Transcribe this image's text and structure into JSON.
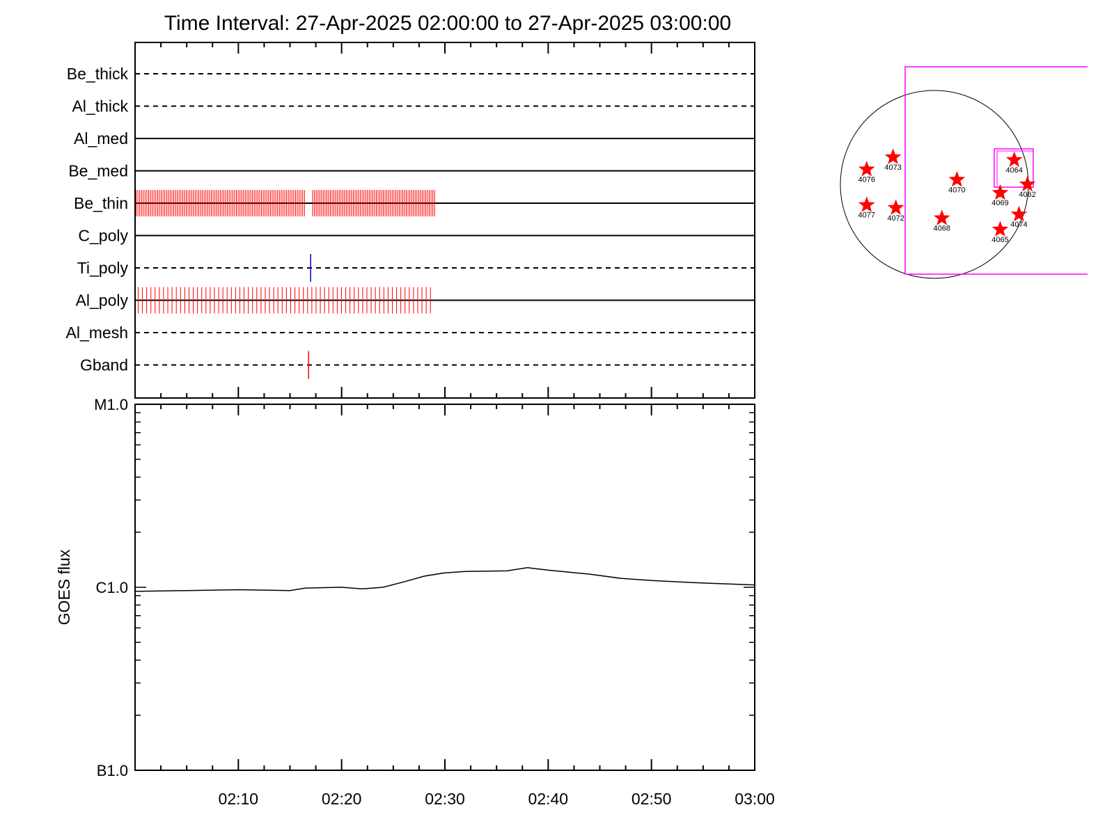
{
  "title": "Time Interval: 27-Apr-2025 02:00:00 to 27-Apr-2025 03:00:00",
  "colors": {
    "axes": "#000000",
    "frame_marks": "#ff0000",
    "ti_poly_mark": "#0000cc",
    "fov_box": "#ff00ff",
    "active_region_star": "#ff0000"
  },
  "chart_data": [
    {
      "type": "timeline",
      "name": "filter_timeline",
      "x_range": [
        "02:00",
        "03:00"
      ],
      "rows": [
        {
          "label": "Be_thick",
          "style": "dashed",
          "marks": []
        },
        {
          "label": "Al_thick",
          "style": "dashed",
          "marks": []
        },
        {
          "label": "Al_med",
          "style": "solid",
          "marks": []
        },
        {
          "label": "Be_med",
          "style": "solid",
          "marks": []
        },
        {
          "label": "Be_thin",
          "style": "solid",
          "mark_color": "red",
          "mark_ranges": [
            {
              "start_min": 0.1,
              "end_min": 16.4,
              "count": 95
            },
            {
              "start_min": 17.2,
              "end_min": 29.0,
              "count": 70
            }
          ]
        },
        {
          "label": "C_poly",
          "style": "solid",
          "marks": []
        },
        {
          "label": "Ti_poly",
          "style": "dashed",
          "mark_color": "blue",
          "marks_min": [
            17.0
          ]
        },
        {
          "label": "Al_poly",
          "style": "solid",
          "mark_color": "red",
          "mark_ranges": [
            {
              "start_min": 0.3,
              "end_min": 28.6,
              "count": 70
            }
          ]
        },
        {
          "label": "Al_mesh",
          "style": "dashed",
          "marks": []
        },
        {
          "label": "Gband",
          "style": "dashed",
          "mark_color": "red",
          "marks_min": [
            16.8
          ]
        }
      ]
    },
    {
      "type": "line",
      "name": "goes_flux",
      "ylabel": "GOES flux",
      "yscale": "log",
      "ylim": [
        1e-07,
        1e-05
      ],
      "ytick_labels": [
        {
          "value": 1e-05,
          "label": "M1.0"
        },
        {
          "value": 1e-06,
          "label": "C1.0"
        },
        {
          "value": 1e-07,
          "label": "B1.0"
        }
      ],
      "xlim_min": [
        0,
        60
      ],
      "xtick_labels": [
        {
          "min": 10,
          "label": "02:10"
        },
        {
          "min": 20,
          "label": "02:20"
        },
        {
          "min": 30,
          "label": "02:30"
        },
        {
          "min": 40,
          "label": "02:40"
        },
        {
          "min": 50,
          "label": "02:50"
        },
        {
          "min": 60,
          "label": "03:00"
        }
      ],
      "series": [
        {
          "x_min": [
            0,
            5,
            10,
            15,
            16.5,
            18,
            20,
            22,
            24,
            26,
            28,
            30,
            32,
            36,
            38,
            40,
            44,
            47,
            50,
            54,
            58,
            60
          ],
          "y": [
            9.5e-07,
            9.6e-07,
            9.7e-07,
            9.6e-07,
            9.9e-07,
            9.95e-07,
            1e-06,
            9.8e-07,
            1e-06,
            1.07e-06,
            1.15e-06,
            1.2e-06,
            1.22e-06,
            1.23e-06,
            1.28e-06,
            1.24e-06,
            1.18e-06,
            1.12e-06,
            1.09e-06,
            1.06e-06,
            1.04e-06,
            1.03e-06
          ]
        }
      ]
    },
    {
      "type": "scatter",
      "name": "solar_disk_map",
      "points": [
        {
          "label": "4073",
          "x": -0.44,
          "y": 0.29
        },
        {
          "label": "4076",
          "x": -0.72,
          "y": 0.16
        },
        {
          "label": "4070",
          "x": 0.24,
          "y": 0.05
        },
        {
          "label": "4064",
          "x": 0.85,
          "y": 0.26
        },
        {
          "label": "4062",
          "x": 0.99,
          "y": 0.0
        },
        {
          "label": "4069",
          "x": 0.7,
          "y": -0.09
        },
        {
          "label": "4077",
          "x": -0.72,
          "y": -0.22
        },
        {
          "label": "4072",
          "x": -0.41,
          "y": -0.25
        },
        {
          "label": "4068",
          "x": 0.08,
          "y": -0.36
        },
        {
          "label": "4074",
          "x": 0.9,
          "y": -0.32
        },
        {
          "label": "4065",
          "x": 0.7,
          "y": -0.48
        }
      ]
    }
  ]
}
